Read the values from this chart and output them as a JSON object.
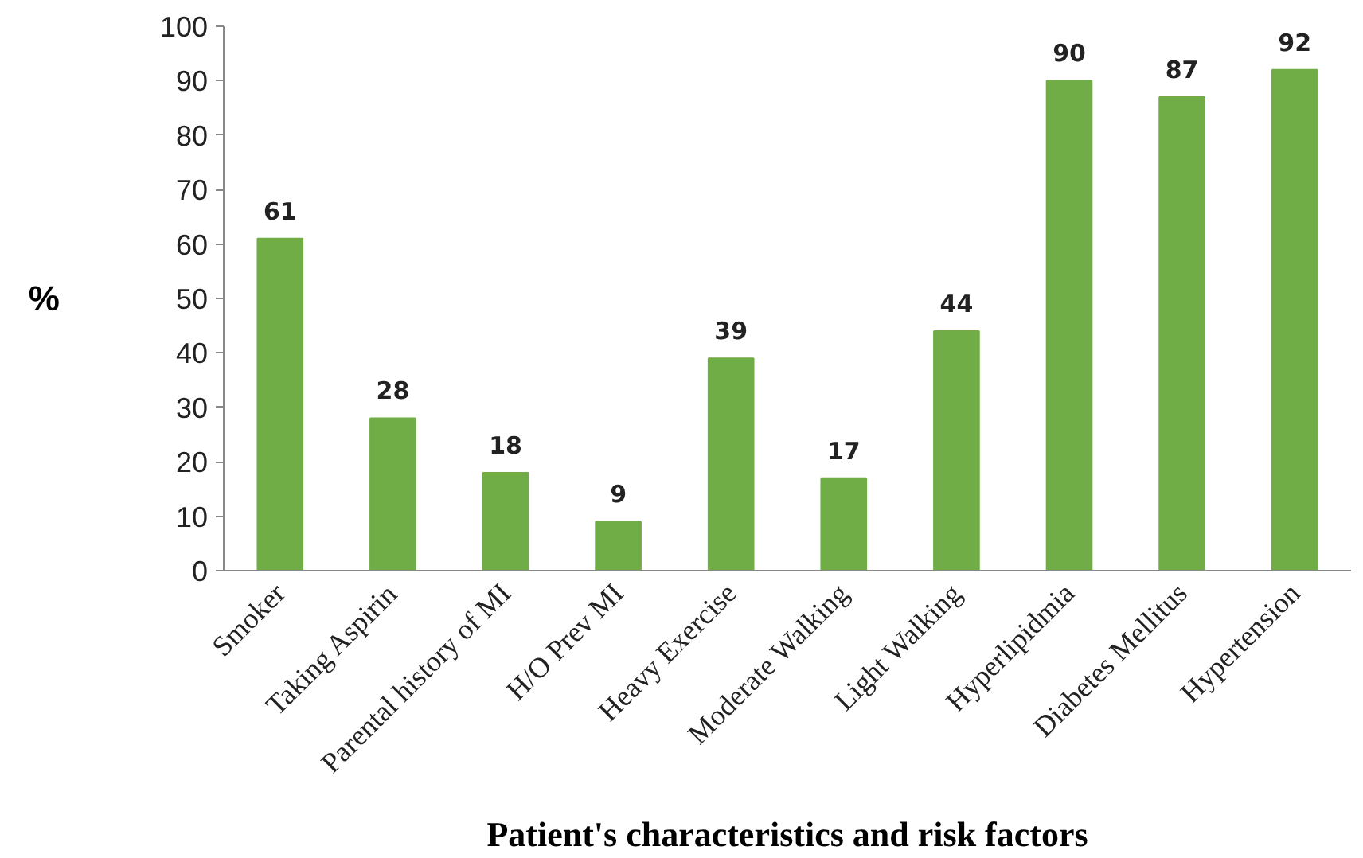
{
  "chart_data": {
    "type": "bar",
    "xlabel": "Patient's characteristics and risk factors",
    "ylabel": "%",
    "categories": [
      "Smoker",
      "Taking Aspirin",
      "Parental history of MI",
      "H/O Prev MI",
      "Heavy Exercise",
      "Moderate Walking",
      "Light Walking",
      "Hyperlipidmia",
      "Diabetes Mellitus",
      "Hypertension"
    ],
    "values": [
      61,
      28,
      18,
      9,
      39,
      17,
      44,
      90,
      87,
      92
    ],
    "color": "#70ad47",
    "ylim": [
      0,
      100
    ],
    "yticks": [
      0,
      10,
      20,
      30,
      40,
      50,
      60,
      70,
      80,
      90,
      100
    ],
    "grid": false,
    "data_labels": true
  }
}
